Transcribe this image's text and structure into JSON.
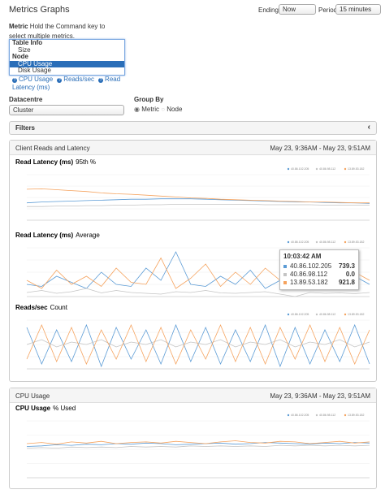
{
  "header": {
    "title": "Metrics Graphs",
    "ending_label": "Ending",
    "ending_value": "Now",
    "period_label": "Period",
    "period_value": "15 minutes"
  },
  "form": {
    "metric_label": "Metric",
    "metric_help": "Hold the Command key to select multiple metrics.",
    "options": [
      {
        "text": "Table Info",
        "group": true
      },
      {
        "text": "Size",
        "group": false
      },
      {
        "text": "Node",
        "group": true
      },
      {
        "text": "CPU Usage",
        "group": false,
        "selected": true
      },
      {
        "text": "Disk Usage",
        "group": false
      }
    ],
    "selected": [
      "CPU Usage",
      "Reads/sec",
      "Read Latency (ms)"
    ],
    "datacentre_label": "Datacentre",
    "datacentre_value": "Cluster",
    "group_by_label": "Group By",
    "group_by_options": [
      "Metric",
      "Node"
    ],
    "filters": "Filters"
  },
  "panels": [
    {
      "title": "Client Reads and Latency",
      "range": "May 23, 9:36AM - May 23, 9:51AM"
    },
    {
      "title": "CPU Usage",
      "range": "May 23, 9:36AM - May 23, 9:51AM"
    }
  ],
  "chart_data": [
    {
      "type": "line",
      "title": "Read Latency (ms)",
      "subtitle": "95th %",
      "ylim": [
        0,
        10
      ],
      "series": [
        {
          "name": "40.86.102.205",
          "color": "#5b9bd5",
          "values": [
            3.8,
            4.0,
            4.1,
            4.2,
            4.3,
            4.4,
            4.5,
            4.6,
            4.6,
            4.7,
            4.7,
            4.7,
            4.6,
            4.5,
            4.4,
            4.3,
            4.2,
            4.1,
            4.0,
            4.0,
            3.9,
            3.8,
            3.8,
            3.7
          ]
        },
        {
          "name": "40.86.98.112",
          "color": "#c4c4c4",
          "values": [
            3.0,
            3.0,
            3.1,
            3.1,
            3.2,
            3.2,
            3.3,
            3.3,
            3.4,
            3.4,
            3.5,
            3.5,
            3.5,
            3.5,
            3.5,
            3.5,
            3.4,
            3.4,
            3.4,
            3.4,
            3.3,
            3.3,
            3.3,
            3.3
          ]
        },
        {
          "name": "13.89.53.182",
          "color": "#f5a25d",
          "values": [
            6.8,
            6.9,
            6.7,
            6.5,
            6.3,
            6.0,
            5.8,
            5.7,
            5.5,
            5.3,
            5.1,
            4.9,
            4.8,
            4.6,
            4.5,
            4.4,
            4.3,
            4.2,
            4.1,
            4.0,
            4.0,
            3.9,
            3.8,
            3.8
          ]
        }
      ]
    },
    {
      "type": "line",
      "title": "Read Latency (ms)",
      "subtitle": "Average",
      "ylim": [
        0,
        1200
      ],
      "series": [
        {
          "name": "40.86.102.205",
          "color": "#5b9bd5",
          "values": [
            300,
            250,
            500,
            350,
            200,
            600,
            300,
            250,
            700,
            400,
            1100,
            300,
            250,
            500,
            300,
            650,
            200,
            400,
            739,
            300,
            250,
            350,
            500,
            300
          ]
        },
        {
          "name": "40.86.98.112",
          "color": "#c4c4c4",
          "values": [
            100,
            150,
            80,
            120,
            200,
            90,
            150,
            100,
            80,
            60,
            120,
            100,
            150,
            90,
            80,
            100,
            120,
            60,
            0,
            100,
            80,
            90,
            70,
            100
          ]
        },
        {
          "name": "13.89.53.182",
          "color": "#f5a25d",
          "values": [
            400,
            200,
            650,
            300,
            500,
            250,
            700,
            350,
            300,
            950,
            200,
            450,
            800,
            250,
            600,
            300,
            700,
            400,
            922,
            350,
            500,
            250,
            600,
            400
          ]
        }
      ],
      "tooltip": {
        "title": "10:03:42 AM",
        "values": [
          739.3,
          0.0,
          921.8
        ],
        "value_labels": [
          "739.3",
          "0.0",
          "921.8"
        ]
      }
    },
    {
      "type": "line",
      "title": "Reads/sec",
      "subtitle": "Count",
      "ylim": [
        0,
        100
      ],
      "series": [
        {
          "name": "40.86.102.205",
          "color": "#5b9bd5",
          "values": [
            85,
            10,
            80,
            15,
            90,
            5,
            85,
            20,
            80,
            10,
            90,
            15,
            85,
            10,
            80,
            15,
            90,
            5,
            85,
            10,
            80,
            15,
            90,
            10
          ]
        },
        {
          "name": "40.86.98.112",
          "color": "#c4c4c4",
          "values": [
            50,
            60,
            45,
            55,
            50,
            60,
            45,
            55,
            50,
            60,
            45,
            55,
            50,
            60,
            45,
            55,
            50,
            60,
            45,
            55,
            50,
            60,
            45,
            55
          ]
        },
        {
          "name": "13.89.53.182",
          "color": "#f5a25d",
          "values": [
            20,
            90,
            15,
            85,
            10,
            80,
            20,
            90,
            15,
            85,
            10,
            80,
            20,
            90,
            15,
            85,
            10,
            85,
            20,
            90,
            15,
            85,
            10,
            80
          ]
        }
      ]
    },
    {
      "type": "line",
      "title": "CPU Usage",
      "subtitle": "% Used",
      "ylim": [
        0,
        100
      ],
      "series": [
        {
          "name": "40.86.102.205",
          "color": "#5b9bd5",
          "values": [
            55,
            56,
            58,
            57,
            59,
            58,
            60,
            59,
            61,
            60,
            58,
            59,
            60,
            61,
            59,
            60,
            62,
            61,
            60,
            59,
            61,
            60,
            62,
            61
          ]
        },
        {
          "name": "40.86.98.112",
          "color": "#c4c4c4",
          "values": [
            52,
            53,
            52,
            54,
            53,
            54,
            53,
            55,
            54,
            55,
            54,
            56,
            55,
            56,
            55,
            56,
            55,
            57,
            56,
            57,
            56,
            57,
            56,
            57
          ]
        },
        {
          "name": "13.89.53.182",
          "color": "#f5a25d",
          "values": [
            60,
            62,
            59,
            63,
            61,
            64,
            60,
            62,
            63,
            61,
            64,
            62,
            60,
            63,
            65,
            62,
            61,
            64,
            63,
            60,
            62,
            64,
            61,
            63
          ]
        }
      ]
    }
  ]
}
